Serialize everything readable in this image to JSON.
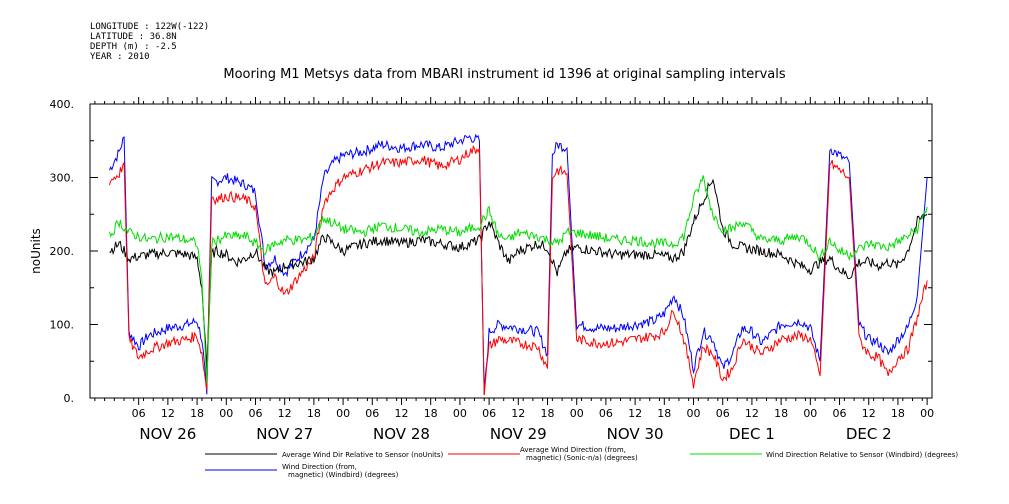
{
  "header": {
    "longitude": "LONGITUDE : 122W(-122)",
    "latitude": "LATITUDE : 36.8N",
    "depth": "DEPTH (m) : -2.5",
    "year": "YEAR : 2010"
  },
  "chart_data": {
    "type": "line",
    "title": "Mooring M1 Metsys data from MBARI instrument id 1396 at original sampling intervals",
    "ylabel": "noUnits",
    "xlabel": "",
    "ylim": [
      0,
      400
    ],
    "xlim": [
      0,
      168
    ],
    "grid": false,
    "legend_placement": "bottom",
    "y_ticks": [
      0,
      100,
      200,
      300,
      400
    ],
    "y_tick_labels": [
      "0.",
      "100.",
      "200.",
      "300.",
      "400."
    ],
    "x_unit": "hours since Nov 26 00:00 (2010)",
    "hour_ticks": [
      6,
      12,
      18,
      24,
      30,
      36,
      42,
      48,
      54,
      60,
      66,
      72,
      78,
      84,
      90,
      96,
      102,
      108,
      114,
      120,
      126,
      132,
      138,
      144,
      150,
      156,
      162,
      168
    ],
    "hour_tick_labels": [
      "06",
      "12",
      "18",
      "00",
      "06",
      "12",
      "18",
      "00",
      "06",
      "12",
      "18",
      "00",
      "06",
      "12",
      "18",
      "00",
      "06",
      "12",
      "18",
      "00",
      "06",
      "12",
      "18",
      "00",
      "06",
      "12",
      "18",
      "00"
    ],
    "day_labels": [
      {
        "label": "NOV 26",
        "at": 12
      },
      {
        "label": "NOV 27",
        "at": 36
      },
      {
        "label": "NOV 28",
        "at": 60
      },
      {
        "label": "NOV 29",
        "at": 84
      },
      {
        "label": "NOV 30",
        "at": 108
      },
      {
        "label": "DEC  1",
        "at": 132
      },
      {
        "label": "DEC  2",
        "at": 156
      }
    ],
    "series": [
      {
        "name": "Average Wind Dir Relative to Sensor (noUnits)",
        "color": "#000000",
        "x": [
          0,
          2,
          4,
          8,
          12,
          16,
          18,
          19,
          20,
          21,
          22,
          24,
          26,
          28,
          30,
          32,
          34,
          36,
          40,
          42,
          44,
          46,
          48,
          52,
          56,
          60,
          64,
          68,
          72,
          76,
          78,
          80,
          82,
          84,
          86,
          88,
          90,
          92,
          94,
          96,
          100,
          104,
          108,
          112,
          116,
          118,
          120,
          122,
          124,
          126,
          128,
          130,
          134,
          138,
          142,
          144,
          146,
          148,
          150,
          152,
          154,
          156,
          158,
          160,
          162,
          164,
          166,
          168
        ],
        "y": [
          200,
          210,
          190,
          195,
          198,
          195,
          190,
          150,
          40,
          195,
          200,
          195,
          185,
          190,
          200,
          175,
          170,
          180,
          185,
          190,
          220,
          210,
          200,
          210,
          215,
          210,
          215,
          210,
          205,
          215,
          240,
          210,
          185,
          200,
          205,
          210,
          205,
          170,
          200,
          205,
          200,
          195,
          195,
          195,
          190,
          200,
          240,
          270,
          300,
          230,
          210,
          205,
          200,
          195,
          180,
          175,
          185,
          190,
          175,
          165,
          185,
          185,
          180,
          185,
          180,
          200,
          240,
          250
        ]
      },
      {
        "name": "Average Wind Direction (from, magnetic) (Sonic-n/a) (degrees)",
        "color": "#ff0000",
        "x": [
          0,
          2,
          3,
          4,
          6,
          8,
          12,
          16,
          18,
          19,
          20,
          21,
          22,
          24,
          28,
          30,
          32,
          34,
          36,
          40,
          42,
          44,
          46,
          48,
          52,
          56,
          60,
          64,
          68,
          72,
          74,
          76,
          77,
          78,
          80,
          84,
          88,
          90,
          91,
          92,
          94,
          96,
          100,
          104,
          108,
          112,
          114,
          116,
          118,
          120,
          122,
          124,
          126,
          128,
          130,
          132,
          134,
          138,
          142,
          144,
          146,
          148,
          150,
          152,
          154,
          156,
          158,
          160,
          162,
          164,
          166,
          168
        ],
        "y": [
          295,
          305,
          320,
          80,
          55,
          65,
          75,
          80,
          85,
          60,
          10,
          275,
          270,
          275,
          270,
          260,
          150,
          165,
          140,
          175,
          190,
          265,
          285,
          300,
          310,
          320,
          320,
          325,
          315,
          325,
          335,
          340,
          10,
          70,
          80,
          75,
          70,
          40,
          300,
          310,
          305,
          80,
          75,
          75,
          80,
          85,
          90,
          120,
          80,
          20,
          70,
          60,
          25,
          40,
          80,
          70,
          60,
          80,
          85,
          80,
          30,
          320,
          310,
          300,
          80,
          60,
          55,
          30,
          55,
          65,
          110,
          160
        ]
      },
      {
        "name": "Wind Direction (from, magnetic) (Windbird) (degrees)",
        "color": "#0000ff",
        "x": [
          0,
          2,
          3,
          4,
          6,
          8,
          12,
          16,
          18,
          19,
          20,
          21,
          22,
          24,
          28,
          30,
          32,
          34,
          36,
          40,
          42,
          44,
          46,
          48,
          52,
          56,
          60,
          64,
          68,
          72,
          74,
          76,
          77,
          78,
          80,
          84,
          88,
          90,
          91,
          92,
          94,
          96,
          100,
          104,
          108,
          112,
          114,
          116,
          118,
          120,
          122,
          124,
          126,
          128,
          130,
          132,
          134,
          138,
          142,
          144,
          146,
          148,
          150,
          152,
          154,
          156,
          158,
          160,
          162,
          164,
          166,
          168
        ],
        "y": [
          310,
          335,
          355,
          90,
          70,
          85,
          95,
          100,
          105,
          80,
          5,
          295,
          295,
          300,
          290,
          280,
          180,
          190,
          170,
          200,
          215,
          300,
          320,
          330,
          335,
          345,
          340,
          345,
          340,
          350,
          355,
          350,
          5,
          90,
          100,
          95,
          90,
          60,
          330,
          345,
          340,
          100,
          95,
          95,
          100,
          105,
          115,
          140,
          110,
          40,
          90,
          80,
          40,
          60,
          95,
          90,
          75,
          100,
          105,
          95,
          50,
          340,
          330,
          320,
          100,
          80,
          75,
          60,
          80,
          95,
          140,
          300
        ]
      },
      {
        "name": "Wind Direction Relative to Sensor (Windbird) (degrees)",
        "color": "#00dd00",
        "x": [
          0,
          2,
          4,
          8,
          12,
          16,
          18,
          19,
          20,
          21,
          22,
          24,
          28,
          30,
          32,
          34,
          36,
          40,
          42,
          44,
          48,
          52,
          56,
          60,
          64,
          68,
          72,
          76,
          78,
          80,
          82,
          84,
          88,
          92,
          94,
          96,
          100,
          104,
          108,
          112,
          116,
          118,
          120,
          122,
          124,
          126,
          128,
          130,
          134,
          138,
          142,
          144,
          146,
          148,
          150,
          152,
          156,
          160,
          164,
          166,
          168
        ],
        "y": [
          220,
          240,
          225,
          215,
          220,
          215,
          210,
          160,
          20,
          210,
          215,
          220,
          220,
          210,
          200,
          210,
          215,
          215,
          220,
          245,
          230,
          225,
          235,
          230,
          225,
          230,
          225,
          235,
          255,
          220,
          215,
          225,
          220,
          210,
          225,
          225,
          220,
          215,
          215,
          210,
          210,
          220,
          270,
          300,
          250,
          230,
          230,
          240,
          215,
          215,
          220,
          210,
          190,
          215,
          200,
          195,
          210,
          205,
          220,
          230,
          260
        ]
      }
    ]
  }
}
